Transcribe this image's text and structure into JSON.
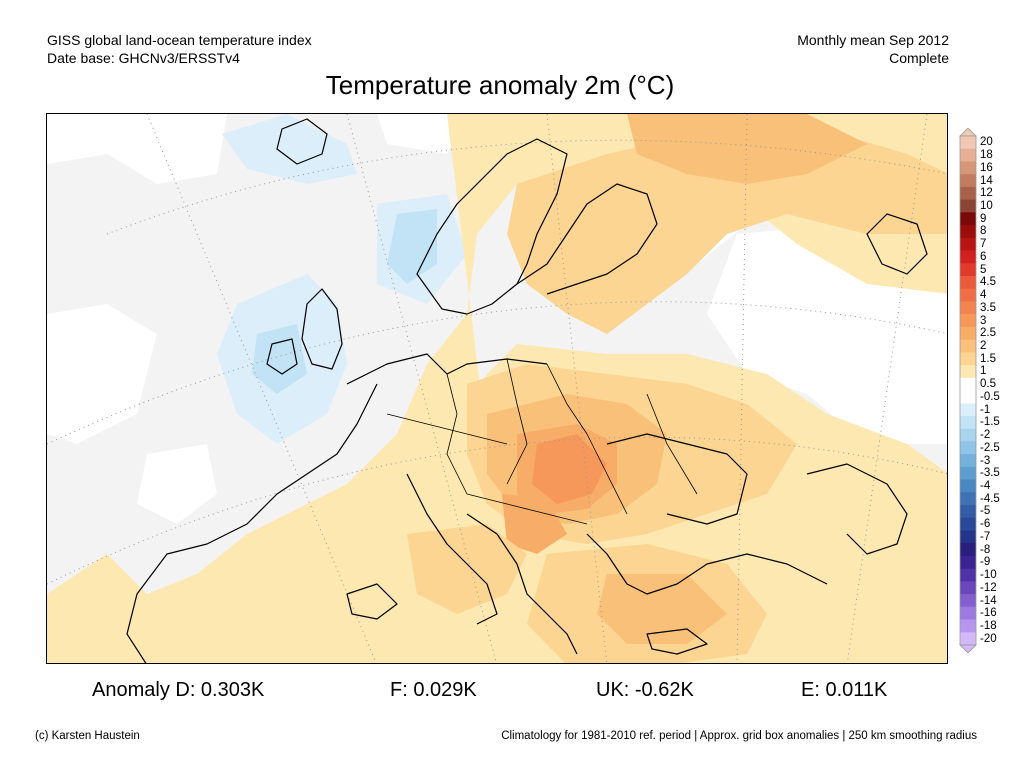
{
  "header": {
    "left_line1": "GISS global land-ocean temperature index",
    "left_line2": "Date base: GHCNv3/ERSSTv4",
    "right_line1": "Monthly mean Sep 2012",
    "right_line2": "Complete"
  },
  "title": "Temperature anomaly 2m (°C)",
  "colorbar": {
    "labels": [
      "20",
      "18",
      "16",
      "14",
      "12",
      "10",
      "9",
      "8",
      "7",
      "6",
      "5",
      "4.5",
      "4",
      "3.5",
      "3",
      "2.5",
      "2",
      "1.5",
      "1",
      "0.5",
      "-0.5",
      "-1",
      "-1.5",
      "-2",
      "-2.5",
      "-3",
      "-3.5",
      "-4",
      "-4.5",
      "-5",
      "-6",
      "-7",
      "-8",
      "-9",
      "-10",
      "-12",
      "-14",
      "-16",
      "-18",
      "-20"
    ],
    "colors": [
      "#f0c8b4",
      "#e6b096",
      "#d69678",
      "#c27b5e",
      "#a86048",
      "#8c4434",
      "#7a0a0a",
      "#9a0d0d",
      "#b81414",
      "#d02020",
      "#e03a2a",
      "#ec5a3c",
      "#f06e46",
      "#f2844f",
      "#f5985a",
      "#f7ac68",
      "#f9c07a",
      "#fbd591",
      "#fce8b0",
      "#ffffff",
      "#ffffff",
      "#dceefa",
      "#c2e2f5",
      "#a8d4ee",
      "#8ec4e6",
      "#74b2dc",
      "#5c9ecf",
      "#4a88c2",
      "#3e72b4",
      "#335da6",
      "#2a4898",
      "#24348a",
      "#2a1f7e",
      "#3b2490",
      "#5032a6",
      "#6a48bc",
      "#8460cf",
      "#9c7adf",
      "#b696ec",
      "#d2b8f6"
    ]
  },
  "anomalies": {
    "d": "Anomaly D: 0.303K",
    "f": "F: 0.029K",
    "uk": "UK: -0.62K",
    "e": "E: 0.011K"
  },
  "footer": {
    "credit": "(c) Karsten Haustein",
    "note": "Climatology for 1981-2010 ref. period | Approx. grid box anomalies | 250 km smoothing radius"
  }
}
